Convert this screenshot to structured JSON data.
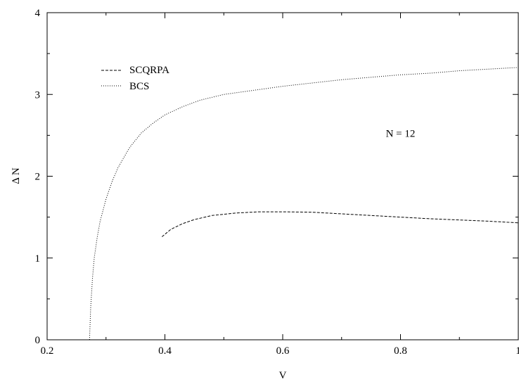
{
  "chart_data": {
    "type": "line",
    "title": "",
    "xlabel": "V",
    "ylabel": "Δ N",
    "xlim": [
      0.2,
      1.0
    ],
    "ylim": [
      0,
      4
    ],
    "xticks": [
      0.2,
      0.4,
      0.6,
      0.8,
      1.0
    ],
    "xtick_labels": [
      "0.2",
      "0.4",
      "0.6",
      "0.8",
      "1"
    ],
    "yticks": [
      0,
      1,
      2,
      3,
      4
    ],
    "ytick_labels": [
      "0",
      "1",
      "2",
      "3",
      "4"
    ],
    "grid": false,
    "legend_position": "top-left",
    "annotations": [
      {
        "text": "N = 12",
        "x": 0.8,
        "y": 2.48
      }
    ],
    "series": [
      {
        "name": "SCQRPA",
        "style": "dashed",
        "color": "#000000",
        "x": [
          0.395,
          0.41,
          0.43,
          0.45,
          0.48,
          0.52,
          0.56,
          0.6,
          0.65,
          0.7,
          0.75,
          0.8,
          0.85,
          0.9,
          0.95,
          1.0
        ],
        "y": [
          1.26,
          1.35,
          1.42,
          1.47,
          1.52,
          1.55,
          1.565,
          1.565,
          1.56,
          1.54,
          1.52,
          1.5,
          1.48,
          1.465,
          1.45,
          1.43
        ]
      },
      {
        "name": "BCS",
        "style": "dotted",
        "color": "#000000",
        "x": [
          0.272,
          0.274,
          0.277,
          0.28,
          0.285,
          0.29,
          0.3,
          0.31,
          0.32,
          0.34,
          0.36,
          0.38,
          0.4,
          0.43,
          0.46,
          0.5,
          0.55,
          0.6,
          0.65,
          0.7,
          0.75,
          0.8,
          0.85,
          0.9,
          0.95,
          1.0
        ],
        "y": [
          0.0,
          0.4,
          0.75,
          1.0,
          1.25,
          1.45,
          1.72,
          1.93,
          2.1,
          2.35,
          2.53,
          2.65,
          2.75,
          2.85,
          2.93,
          3.0,
          3.05,
          3.1,
          3.14,
          3.18,
          3.21,
          3.24,
          3.26,
          3.29,
          3.31,
          3.33
        ]
      }
    ]
  }
}
